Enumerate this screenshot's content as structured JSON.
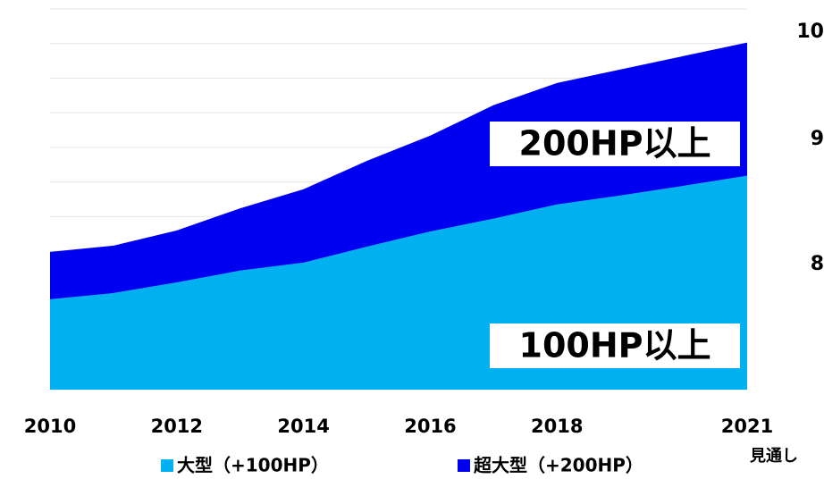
{
  "chart_data": {
    "type": "stacked_area",
    "x": [
      2010,
      2011,
      2012,
      2013,
      2014,
      2015,
      2016,
      2017,
      2018,
      2019,
      2020,
      2021
    ],
    "series": [
      {
        "name": "大型（+100HP）",
        "color": "#00b0f0",
        "values": [
          2.61,
          2.79,
          3.1,
          3.44,
          3.67,
          4.13,
          4.57,
          4.94,
          5.35,
          5.61,
          5.89,
          6.18
        ]
      },
      {
        "name": "超大型（+200HP）",
        "color": "#0000f0",
        "values": [
          1.37,
          1.37,
          1.5,
          1.8,
          2.12,
          2.48,
          2.77,
          3.28,
          3.51,
          3.64,
          3.75,
          3.85
        ]
      }
    ],
    "xlim": [
      2010,
      2021
    ],
    "xticks": [
      2010,
      2012,
      2014,
      2016,
      2018,
      2021
    ],
    "ylim": [
      0,
      11
    ],
    "yticks": [
      0,
      1,
      2,
      3,
      4,
      5,
      6,
      7,
      8,
      9,
      10,
      11
    ],
    "grid": true,
    "annotations": [
      "200HP以上",
      "100HP以上",
      "見通し"
    ],
    "cut_labels": [
      "10",
      "9",
      "8"
    ]
  }
}
